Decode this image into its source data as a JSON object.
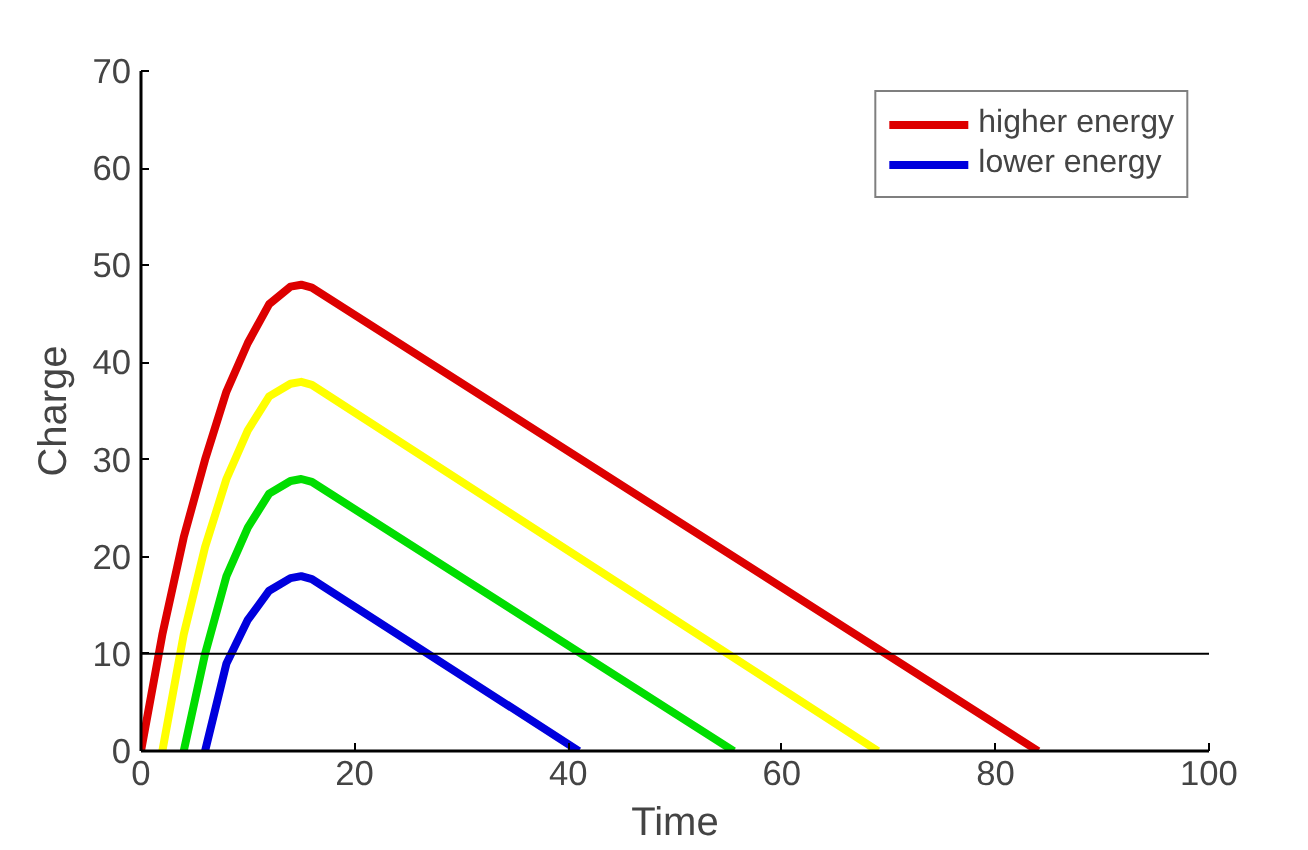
{
  "chart_data": {
    "type": "line",
    "xlabel": "Time",
    "ylabel": "Charge",
    "xlim": [
      0,
      100
    ],
    "xticks": [
      0,
      20,
      40,
      60,
      80,
      100
    ],
    "ylim": [
      0,
      70
    ],
    "yticks": [
      0,
      10,
      20,
      30,
      40,
      50,
      60,
      70
    ],
    "grid": false,
    "legend": "top right",
    "line_style": "solid",
    "marker": "none",
    "ref_lines": [
      {
        "axis": "y",
        "value": 10,
        "color": "#000000"
      }
    ],
    "series": [
      {
        "name": "higher energy",
        "color": "#dd0000",
        "x": [
          0,
          2,
          4,
          6,
          8,
          10,
          12,
          14,
          15,
          16,
          84
        ],
        "values": [
          0,
          12,
          22,
          30,
          37,
          42,
          46,
          47.8,
          48,
          47.7,
          0
        ]
      },
      {
        "name": "lower energy",
        "color": "#0000dd",
        "x": [
          6,
          8,
          10,
          12,
          14,
          15,
          16,
          41
        ],
        "values": [
          0,
          9,
          13.5,
          16.5,
          17.8,
          18,
          17.7,
          0
        ]
      },
      {
        "color": "#ffff00",
        "x": [
          2,
          4,
          6,
          8,
          10,
          12,
          14,
          15,
          16,
          69
        ],
        "values": [
          0,
          12,
          21,
          28,
          33,
          36.5,
          37.8,
          38,
          37.7,
          0
        ]
      },
      {
        "color": "#00dd00",
        "x": [
          4,
          6,
          8,
          10,
          12,
          14,
          15,
          16,
          55.5
        ],
        "values": [
          0,
          10,
          18,
          23,
          26.5,
          27.8,
          28,
          27.7,
          0
        ]
      }
    ]
  }
}
